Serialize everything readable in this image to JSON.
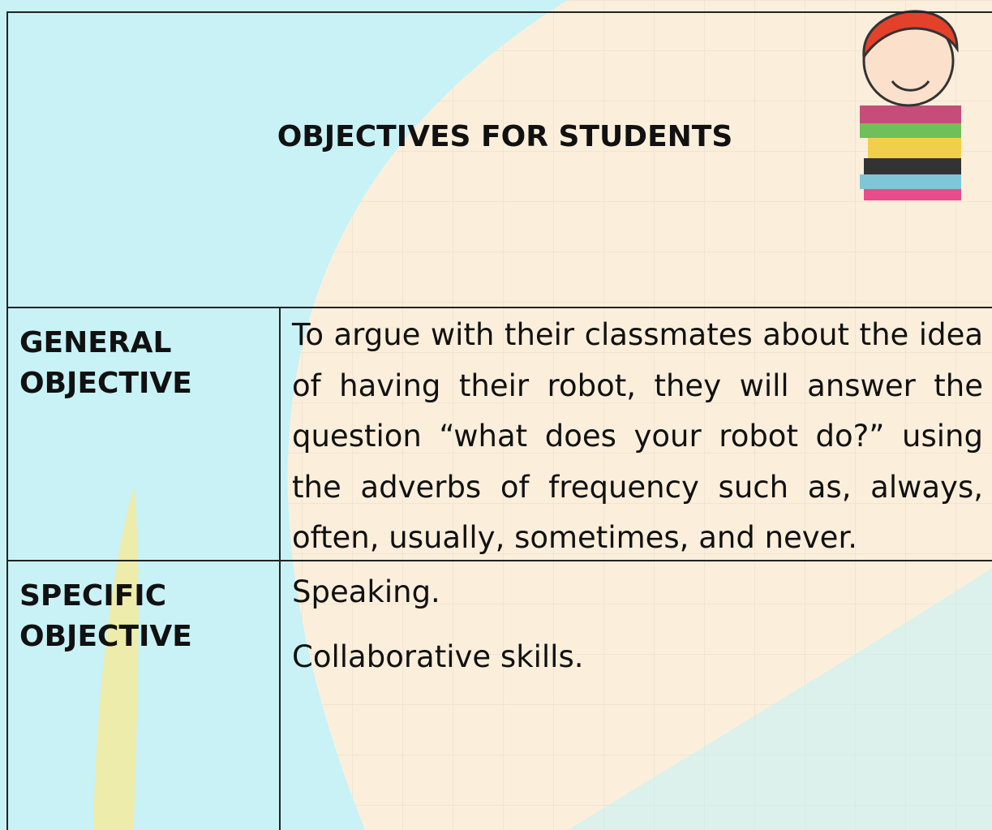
{
  "header": {
    "title": "OBJECTIVES FOR STUDENTS"
  },
  "table": {
    "rows": [
      {
        "label": "GENERAL OBJECTIVE",
        "content": [
          "To argue with their classmates about the idea of having their robot, they will answer the question “what does your robot do?” using the adverbs of frequency such as, always, often, usually, sometimes, and never."
        ]
      },
      {
        "label": "SPECIFIC OBJECTIVE",
        "content": [
          "Speaking.",
          "Collaborative skills."
        ]
      }
    ]
  }
}
